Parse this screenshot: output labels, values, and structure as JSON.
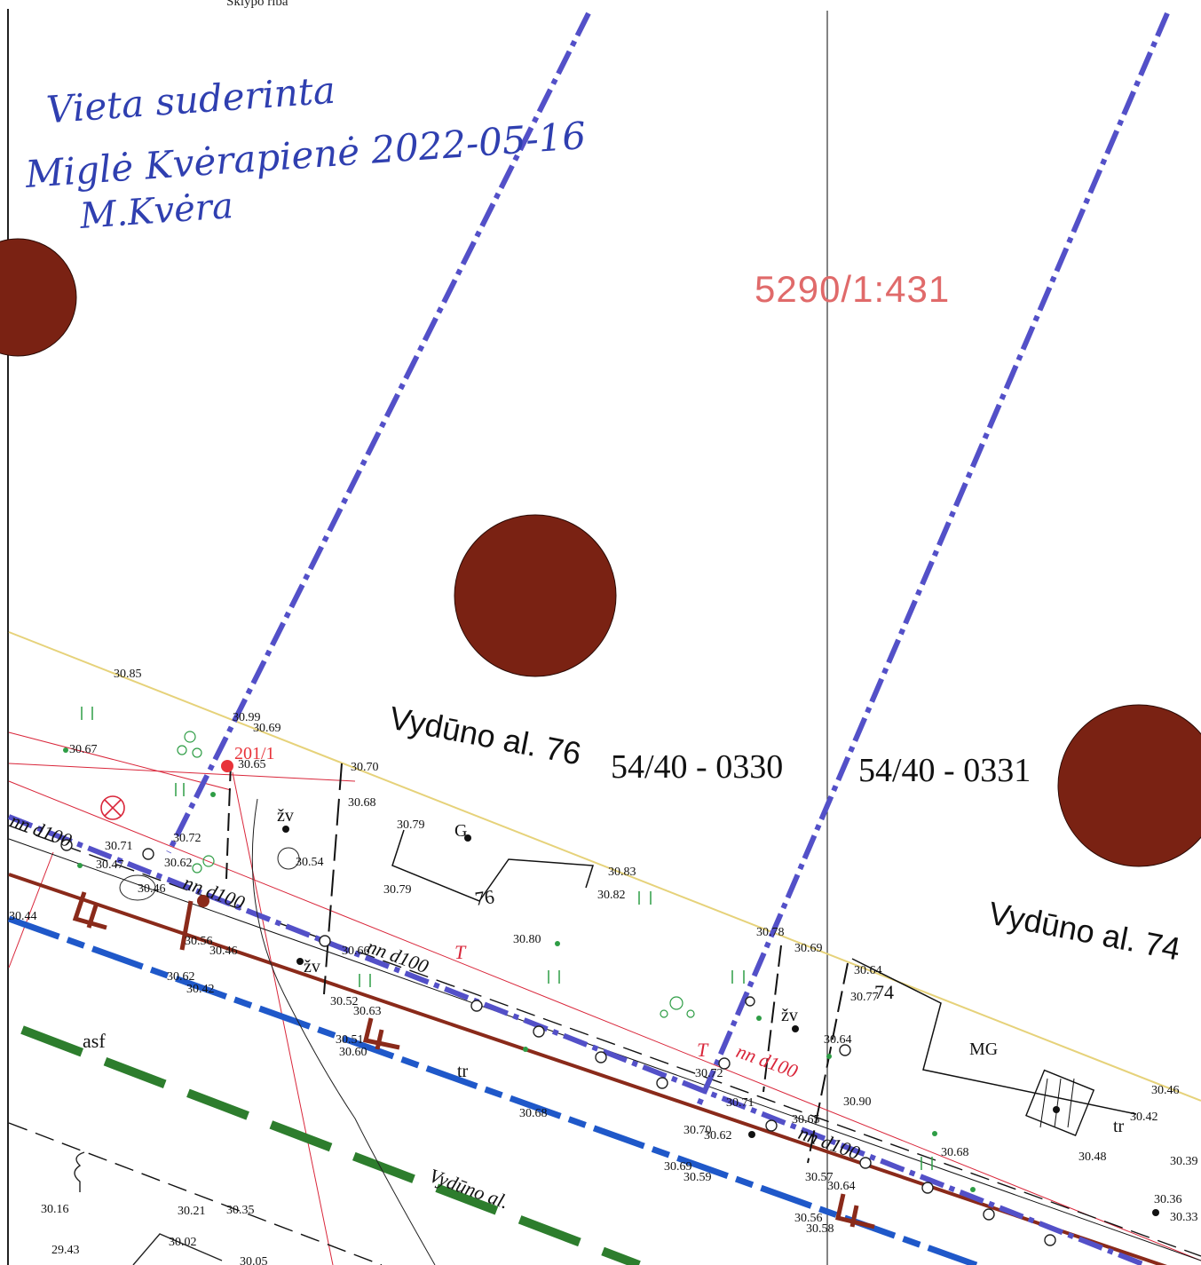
{
  "header": {
    "label": "Sklypo riba"
  },
  "approval_note": {
    "line1": "Vieta suderinta",
    "line2": "Miglė Kvėrapienė 2022-05-16",
    "signature": "M.Kvėra"
  },
  "parcel_area_label": "5290/1:431",
  "addresses": {
    "house76": "Vydūno al. 76",
    "house74": "Vydūno al. 74",
    "street": "Vydūno al."
  },
  "parcel_ids": {
    "left": "54/40 - 0330",
    "right": "54/40 - 0331"
  },
  "building_labels": {
    "g": "G",
    "mg": "MG",
    "num76": "76",
    "num74": "74"
  },
  "utility_labels": {
    "nn_d100": "nn d100",
    "t_line": "T",
    "surface_asf": "asf",
    "tr": "tr",
    "zv": "žv",
    "point_201_1": "201/1"
  },
  "elevations": [
    "30.85",
    "30.67",
    "30.99",
    "30.69",
    "30.65",
    "30.70",
    "30.68",
    "30.79",
    "30.72",
    "30.71",
    "30.47",
    "30.62",
    "30.46",
    "30.54",
    "30.83",
    "30.82",
    "30.44",
    "30.56",
    "30.46",
    "30.62",
    "30.42",
    "30.80",
    "30.78",
    "30.69",
    "30.64",
    "30.77",
    "30.66",
    "30.52",
    "30.63",
    "30.51",
    "30.60",
    "30.72",
    "30.71",
    "30.70",
    "30.62",
    "30.68",
    "30.69",
    "30.59",
    "30.65",
    "30.90",
    "30.57",
    "30.64",
    "30.64",
    "30.56",
    "30.58",
    "30.46",
    "30.42",
    "30.48",
    "30.39",
    "30.36",
    "30.33",
    "30.16",
    "30.21",
    "30.35",
    "29.43",
    "30.02",
    "30.05",
    "30.79",
    "30.68"
  ],
  "colors": {
    "boundary_blue": "#5350c8",
    "dot_brown": "#7a2213",
    "pipe_red": "#8a2a1a",
    "water_blue": "#1f58c9",
    "green_dash": "#2d7d2d",
    "red_line": "#d9263a",
    "yellow_line": "#e6d27a",
    "handwriting": "#2f3fb0",
    "area_label": "#e06a6a"
  }
}
